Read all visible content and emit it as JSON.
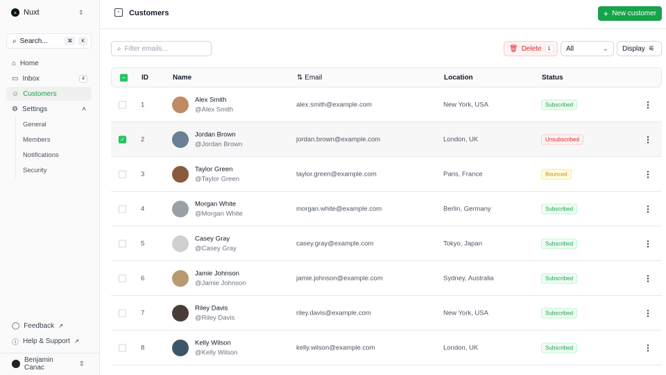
{
  "sidebar": {
    "brand": "Nuxt",
    "search": "Search...",
    "kbd1": "⌘",
    "kbd2": "K",
    "items": [
      {
        "label": "Home",
        "icon": "home-icon"
      },
      {
        "label": "Inbox",
        "icon": "inbox-icon",
        "badge": "4"
      },
      {
        "label": "Customers",
        "icon": "users-icon"
      },
      {
        "label": "Settings",
        "icon": "gear-icon"
      }
    ],
    "sub": [
      "General",
      "Members",
      "Notifications",
      "Security"
    ],
    "feedback": "Feedback",
    "help": "Help & Support",
    "user": "Benjamin Canac"
  },
  "header": {
    "title": "Customers",
    "new_label": "New customer"
  },
  "toolbar": {
    "filter_placeholder": "Filter emails...",
    "delete_label": "Delete",
    "delete_count": "1",
    "status_select": "All",
    "display_label": "Display"
  },
  "table": {
    "columns": [
      "ID",
      "Name",
      "Email",
      "Location",
      "Status"
    ],
    "rows": [
      {
        "id": "1",
        "name": "Alex Smith",
        "handle": "@Alex Smith",
        "email": "alex.smith@example.com",
        "location": "New York, USA",
        "status": "Subscribed",
        "checked": false
      },
      {
        "id": "2",
        "name": "Jordan Brown",
        "handle": "@Jordan Brown",
        "email": "jordan.brown@example.com",
        "location": "London, UK",
        "status": "Unsubscribed",
        "checked": true
      },
      {
        "id": "3",
        "name": "Taylor Green",
        "handle": "@Taylor Green",
        "email": "taylor.green@example.com",
        "location": "Paris, France",
        "status": "Bounced",
        "checked": false
      },
      {
        "id": "4",
        "name": "Morgan White",
        "handle": "@Morgan White",
        "email": "morgan.white@example.com",
        "location": "Berlin, Germany",
        "status": "Subscribed",
        "checked": false
      },
      {
        "id": "5",
        "name": "Casey Gray",
        "handle": "@Casey Gray",
        "email": "casey.gray@example.com",
        "location": "Tokyo, Japan",
        "status": "Subscribed",
        "checked": false
      },
      {
        "id": "6",
        "name": "Jamie Johnson",
        "handle": "@Jamie Johnson",
        "email": "jamie.johnson@example.com",
        "location": "Sydney, Australia",
        "status": "Subscribed",
        "checked": false
      },
      {
        "id": "7",
        "name": "Riley Davis",
        "handle": "@Riley Davis",
        "email": "riley.davis@example.com",
        "location": "New York, USA",
        "status": "Subscribed",
        "checked": false
      },
      {
        "id": "8",
        "name": "Kelly Wilson",
        "handle": "@Kelly Wilson",
        "email": "kelly.wilson@example.com",
        "location": "London, UK",
        "status": "Subscribed",
        "checked": false
      }
    ]
  },
  "colors": {
    "accent": "#16a34a",
    "subscribed": "#16a34a",
    "unsubscribed": "#dc2626",
    "bounced": "#ca8a04"
  }
}
